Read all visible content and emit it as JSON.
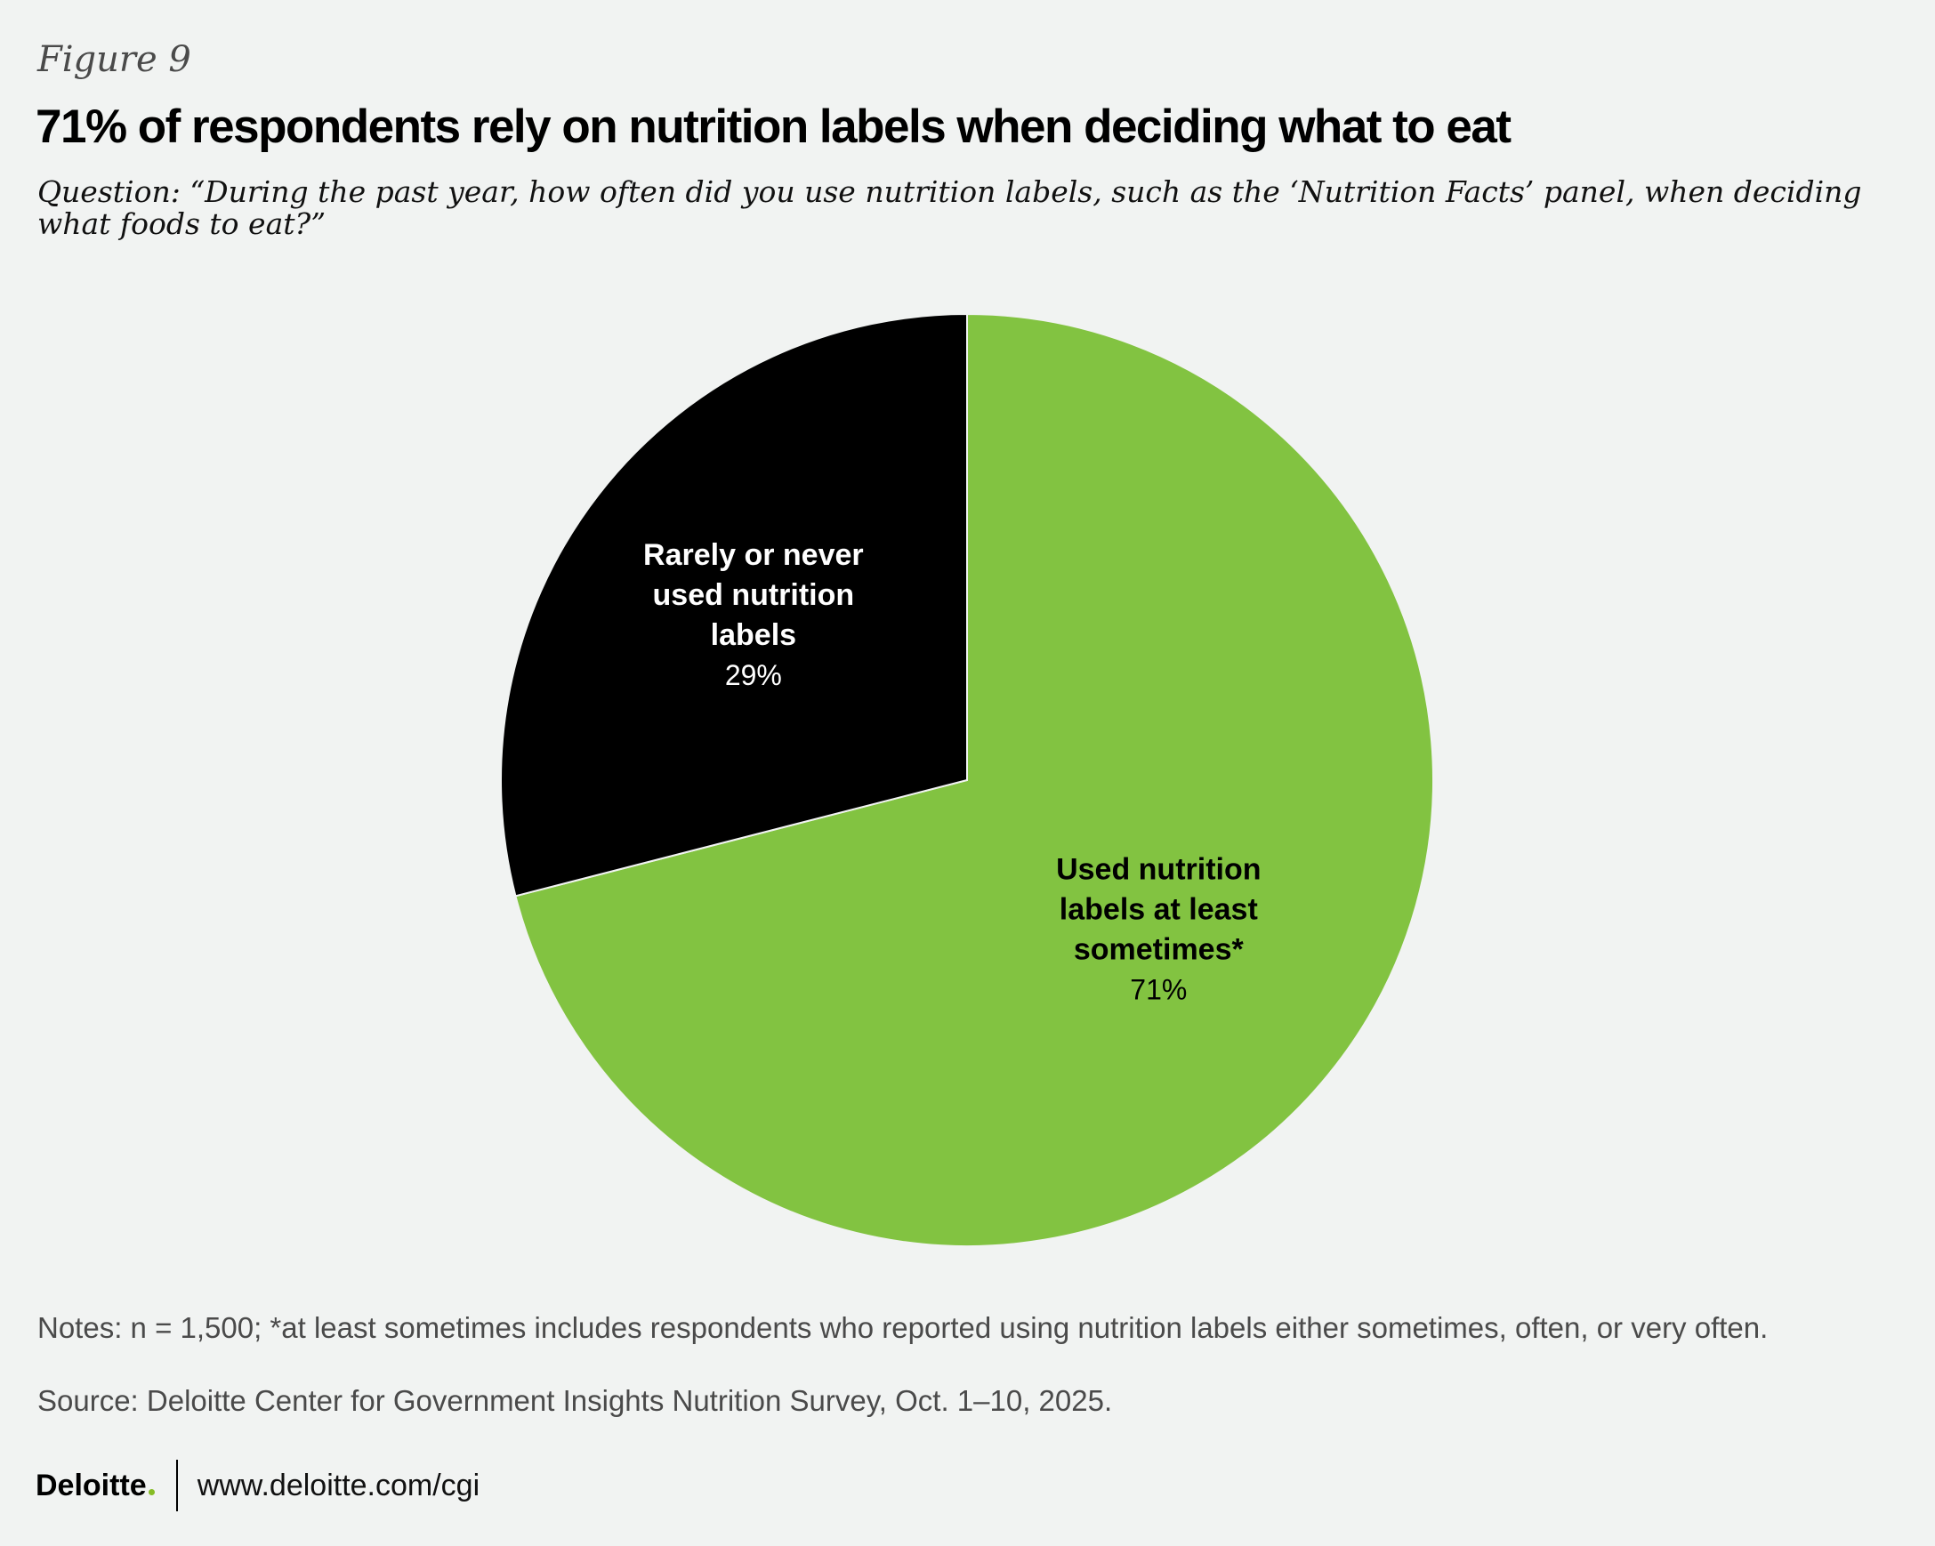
{
  "figure_label": "Figure 9",
  "title": "71% of respondents rely on nutrition labels when deciding what to eat",
  "question": "Question: “During the past year, how often did you use nutrition labels, such as the ‘Nutrition Facts’ panel, when deciding what foods to eat?”",
  "chart_data": {
    "type": "pie",
    "title": "71% of respondents rely on nutrition labels when deciding what to eat",
    "start": "12 o'clock, clockwise",
    "slices": [
      {
        "name_lines": [
          "Used nutrition",
          "labels at least",
          "sometimes*"
        ],
        "value": 71,
        "value_label": "71%",
        "color": "#82c341",
        "text_color": "#000000"
      },
      {
        "name_lines": [
          "Rarely or never",
          "used nutrition",
          "labels"
        ],
        "value": 29,
        "value_label": "29%",
        "color": "#000000",
        "text_color": "#ffffff"
      }
    ]
  },
  "notes": "Notes: n = 1,500; *at least sometimes includes respondents who reported using nutrition labels either sometimes, often, or very often.",
  "source": "Source: Deloitte Center for Government Insights Nutrition Survey, Oct. 1–10, 2025.",
  "footer": {
    "logo_text": "Deloitte",
    "logo_dot_color": "#86bc25",
    "url": "www.deloitte.com/cgi"
  }
}
